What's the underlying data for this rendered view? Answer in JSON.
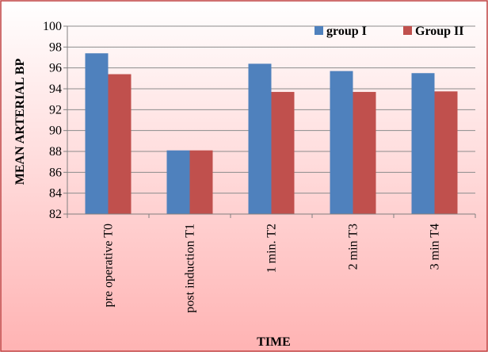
{
  "chart_data": {
    "type": "bar",
    "categories": [
      "pre operative T0",
      "post induction T1",
      "1 min. T2",
      "2 min T3",
      "3 min T4"
    ],
    "series": [
      {
        "name": "group I",
        "values": [
          97.4,
          88.1,
          96.4,
          95.7,
          95.5
        ],
        "color": "#4F81BD"
      },
      {
        "name": "Group II",
        "values": [
          95.4,
          88.1,
          93.7,
          93.7,
          93.75
        ],
        "color": "#C0504D"
      }
    ],
    "xlabel": "TIME",
    "ylabel": "MEAN  ARTERIAL BP",
    "ylim": [
      82,
      100
    ],
    "yticks": [
      "82",
      "84",
      "86",
      "88",
      "90",
      "92",
      "94",
      "96",
      "98",
      "100"
    ],
    "grid": true,
    "legend": "top-right",
    "background_gradient": [
      "#ffffff",
      "#ffb3b3"
    ]
  }
}
